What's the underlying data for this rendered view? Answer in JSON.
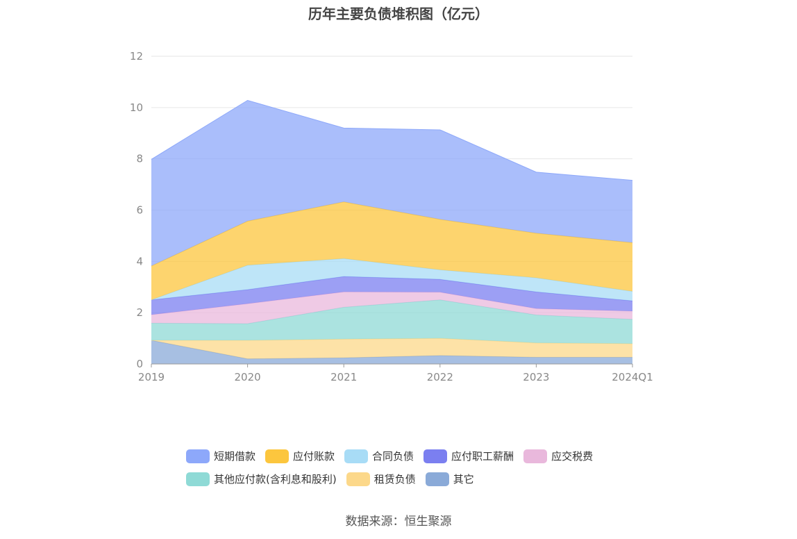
{
  "chart_data": {
    "type": "area",
    "stacked": true,
    "title": "历年主要负债堆积图（亿元）",
    "categories": [
      "2019",
      "2020",
      "2021",
      "2022",
      "2023",
      "2024Q1"
    ],
    "ylim": [
      0,
      12
    ],
    "yticks": [
      "0",
      "2",
      "4",
      "6",
      "8",
      "10",
      "12"
    ],
    "grid": true,
    "legend_position": "bottom",
    "series": [
      {
        "name": "其它",
        "color": "#8aaad8",
        "values": [
          0.92,
          0.2,
          0.24,
          0.33,
          0.26,
          0.26
        ]
      },
      {
        "name": "租赁负债",
        "color": "#fcd88a",
        "values": [
          0.0,
          0.72,
          0.73,
          0.67,
          0.56,
          0.53
        ]
      },
      {
        "name": "其他应付款(含利息和股利)",
        "color": "#8fdad6",
        "values": [
          0.67,
          0.65,
          1.24,
          1.5,
          1.09,
          0.95
        ]
      },
      {
        "name": "应交税费",
        "color": "#e9b8dc",
        "values": [
          0.33,
          0.78,
          0.6,
          0.3,
          0.25,
          0.32
        ]
      },
      {
        "name": "应付职工薪酬",
        "color": "#7b7ff0",
        "values": [
          0.58,
          0.55,
          0.6,
          0.5,
          0.65,
          0.4
        ]
      },
      {
        "name": "合同负债",
        "color": "#a8dcf6",
        "values": [
          0.0,
          0.95,
          0.7,
          0.37,
          0.55,
          0.37
        ]
      },
      {
        "name": "应付账款",
        "color": "#fcc63e",
        "values": [
          1.32,
          1.72,
          2.21,
          1.97,
          1.74,
          1.9
        ]
      },
      {
        "name": "短期借款",
        "color": "#8da8fa",
        "values": [
          4.16,
          4.71,
          2.88,
          3.49,
          2.38,
          2.43
        ]
      }
    ]
  },
  "legend": {
    "rows": [
      [
        {
          "label": "短期借款",
          "color": "#8da8fa"
        },
        {
          "label": "应付账款",
          "color": "#fcc63e"
        },
        {
          "label": "合同负债",
          "color": "#a8dcf6"
        },
        {
          "label": "应付职工薪酬",
          "color": "#7b7ff0"
        },
        {
          "label": "应交税费",
          "color": "#e9b8dc"
        }
      ],
      [
        {
          "label": "其他应付款(含利息和股利)",
          "color": "#8fdad6"
        },
        {
          "label": "租赁负债",
          "color": "#fcd88a"
        },
        {
          "label": "其它",
          "color": "#8aaad8"
        }
      ]
    ]
  },
  "footer": {
    "source": "数据来源：恒生聚源"
  }
}
